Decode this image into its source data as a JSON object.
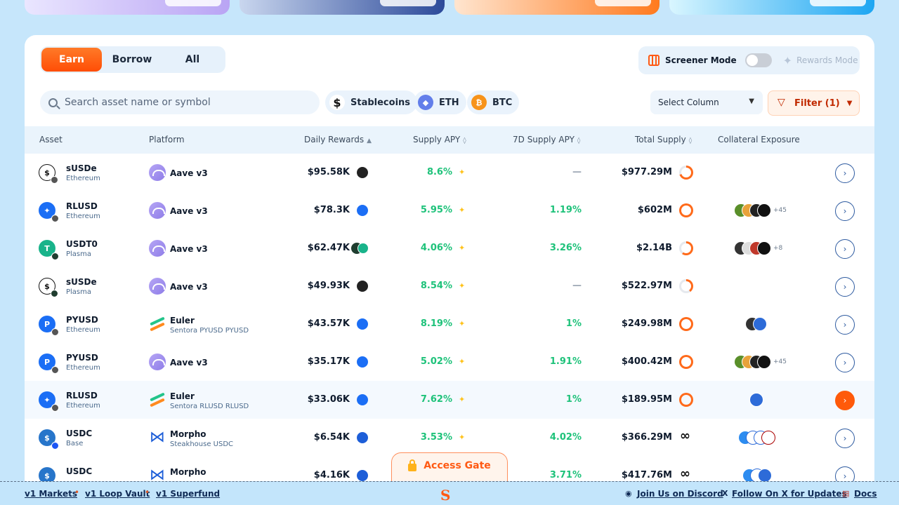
{
  "tabs": [
    {
      "label": "Earn",
      "active": true
    },
    {
      "label": "Borrow",
      "active": false
    },
    {
      "label": "All",
      "active": false
    }
  ],
  "screener": {
    "label": "Screener Mode",
    "toggle_on": false,
    "rewards_label": "Rewards Mode"
  },
  "search": {
    "placeholder": "Search asset name or symbol",
    "value": ""
  },
  "chips": [
    {
      "label": "Stablecoins",
      "icon": "dollar-icon",
      "color": "#111111"
    },
    {
      "label": "ETH",
      "icon": "ethereum-icon",
      "color": "#627eea"
    },
    {
      "label": "BTC",
      "icon": "bitcoin-icon",
      "color": "#f7931a"
    }
  ],
  "select_column": {
    "label": "Select Column"
  },
  "filter": {
    "label": "Filter (1)"
  },
  "columns": {
    "asset": "Asset",
    "platform": "Platform",
    "daily_rewards": "Daily Rewards",
    "supply_apy": "Supply APY",
    "supply_apy_7d": "7D Supply APY",
    "total_supply": "Total Supply",
    "collateral": "Collateral Exposure"
  },
  "rows": [
    {
      "asset": "sUSDe",
      "chain": "Ethereum",
      "platform": "Aave v3",
      "platform_sub": "",
      "daily_rewards": "$95.58K",
      "supply_apy": "8.6%",
      "apy_7d": "—",
      "total_supply": "$977.29M",
      "collateral_more": ""
    },
    {
      "asset": "RLUSD",
      "chain": "Ethereum",
      "platform": "Aave v3",
      "platform_sub": "",
      "daily_rewards": "$78.3K",
      "supply_apy": "5.95%",
      "apy_7d": "1.19%",
      "total_supply": "$602M",
      "collateral_more": "+45"
    },
    {
      "asset": "USDT0",
      "chain": "Plasma",
      "platform": "Aave v3",
      "platform_sub": "",
      "daily_rewards": "$62.47K",
      "supply_apy": "4.06%",
      "apy_7d": "3.26%",
      "total_supply": "$2.14B",
      "collateral_more": "+8"
    },
    {
      "asset": "sUSDe",
      "chain": "Plasma",
      "platform": "Aave v3",
      "platform_sub": "",
      "daily_rewards": "$49.93K",
      "supply_apy": "8.54%",
      "apy_7d": "—",
      "total_supply": "$522.97M",
      "collateral_more": ""
    },
    {
      "asset": "PYUSD",
      "chain": "Ethereum",
      "platform": "Euler",
      "platform_sub": "Sentora PYUSD PYUSD",
      "daily_rewards": "$43.57K",
      "supply_apy": "8.19%",
      "apy_7d": "1%",
      "total_supply": "$249.98M",
      "collateral_more": ""
    },
    {
      "asset": "PYUSD",
      "chain": "Ethereum",
      "platform": "Aave v3",
      "platform_sub": "",
      "daily_rewards": "$35.17K",
      "supply_apy": "5.02%",
      "apy_7d": "1.91%",
      "total_supply": "$400.42M",
      "collateral_more": "+45"
    },
    {
      "asset": "RLUSD",
      "chain": "Ethereum",
      "platform": "Euler",
      "platform_sub": "Sentora RLUSD RLUSD",
      "daily_rewards": "$33.06K",
      "supply_apy": "7.62%",
      "apy_7d": "1%",
      "total_supply": "$189.95M",
      "collateral_more": ""
    },
    {
      "asset": "USDC",
      "chain": "Base",
      "platform": "Morpho",
      "platform_sub": "Steakhouse USDC",
      "daily_rewards": "$6.54K",
      "supply_apy": "3.53%",
      "apy_7d": "4.02%",
      "total_supply": "$366.29M",
      "collateral_more": ""
    },
    {
      "asset": "USDC",
      "chain": "",
      "platform": "Morpho",
      "platform_sub": "",
      "daily_rewards": "$4.16K",
      "supply_apy": "",
      "apy_7d": "3.71%",
      "total_supply": "$417.76M",
      "collateral_more": ""
    }
  ],
  "access_gate": "Access Gate",
  "footer": {
    "links_left": [
      "v1 Markets",
      "v1 Loop Vault",
      "v1 Superfund"
    ],
    "discord": "Join Us on Discord",
    "x": "Follow On X for Updates",
    "docs": "Docs",
    "logo": "S"
  },
  "colors": {
    "accent": "#ff5a0a",
    "apy_green": "#1ec27a",
    "page_bg": "#c6e6fb"
  }
}
